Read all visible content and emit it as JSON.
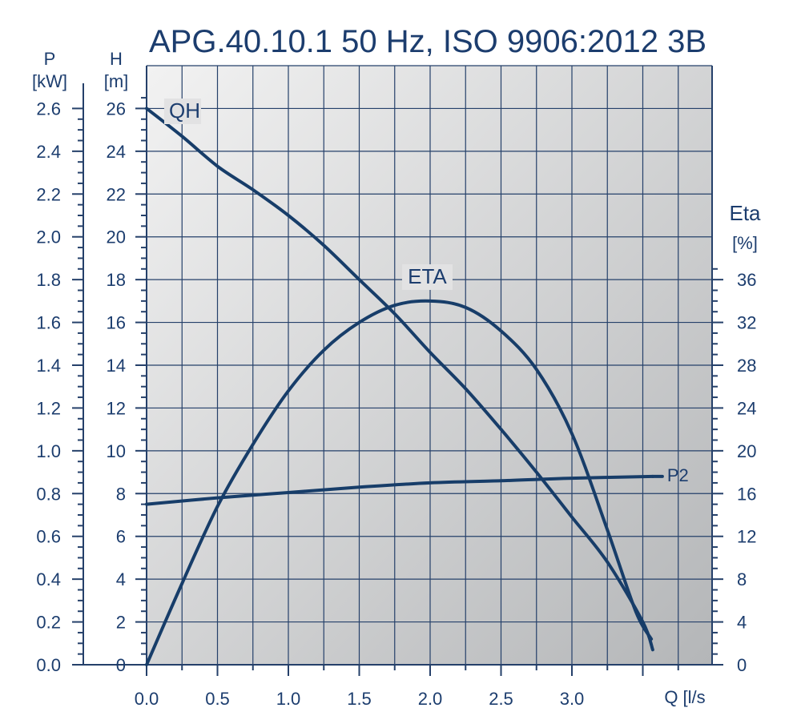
{
  "colors": {
    "curve": "#173d69",
    "text": "#1c3d6e",
    "grid": "#25406a",
    "plot_bg_light": "#f2f2f2",
    "plot_bg_dark": "#b4b6b8"
  },
  "chart_data": {
    "type": "line",
    "title": "APG.40.10.1 50 Hz, ISO 9906:2012 3B",
    "grid": true,
    "x": {
      "label": "Q [l/s",
      "range": [
        0,
        4.0
      ],
      "ticks": [
        0.0,
        0.5,
        1.0,
        1.5,
        2.0,
        2.5,
        3.0
      ],
      "tick_labels": [
        "0.0",
        "0.5",
        "1.0",
        "1.5",
        "2.0",
        "2.5",
        "3.0"
      ]
    },
    "y_head": {
      "label": "H",
      "unit": "[m]",
      "range": [
        0,
        28
      ],
      "ticks": [
        0,
        2,
        4,
        6,
        8,
        10,
        12,
        14,
        16,
        18,
        20,
        22,
        24,
        26
      ],
      "tick_labels": [
        "0",
        "2",
        "4",
        "6",
        "8",
        "10",
        "12",
        "14",
        "16",
        "18",
        "20",
        "22",
        "24",
        "26"
      ]
    },
    "y_power": {
      "label": "P",
      "unit": "[kW]",
      "range": [
        0,
        2.8
      ],
      "ticks": [
        0.0,
        0.2,
        0.4,
        0.6,
        0.8,
        1.0,
        1.2,
        1.4,
        1.6,
        1.8,
        2.0,
        2.2,
        2.4,
        2.6
      ],
      "tick_labels": [
        "0.0",
        "0.2",
        "0.4",
        "0.6",
        "0.8",
        "1.0",
        "1.2",
        "1.4",
        "1.6",
        "1.8",
        "2.0",
        "2.2",
        "2.4",
        "2.6"
      ]
    },
    "y_eta": {
      "label": "Eta",
      "unit": "[%]",
      "range": [
        0,
        56
      ],
      "ticks": [
        0,
        4,
        8,
        12,
        16,
        20,
        24,
        28,
        32,
        36
      ],
      "tick_labels": [
        "0",
        "4",
        "8",
        "12",
        "16",
        "20",
        "24",
        "28",
        "32",
        "36"
      ]
    },
    "series": [
      {
        "name": "QH",
        "axis": "y_head",
        "x": [
          0.0,
          0.25,
          0.5,
          0.75,
          1.0,
          1.25,
          1.5,
          1.75,
          2.0,
          2.25,
          2.5,
          2.75,
          3.0,
          3.25,
          3.5,
          3.57
        ],
        "y": [
          26.0,
          24.7,
          23.3,
          22.2,
          21.0,
          19.6,
          18.0,
          16.4,
          14.6,
          12.9,
          11.0,
          9.0,
          6.9,
          4.8,
          2.0,
          0.7
        ]
      },
      {
        "name": "ETA",
        "axis": "y_eta",
        "x": [
          0.0,
          0.25,
          0.5,
          0.75,
          1.0,
          1.25,
          1.5,
          1.75,
          2.0,
          2.25,
          2.5,
          2.75,
          3.0,
          3.25,
          3.45,
          3.56
        ],
        "y": [
          0.0,
          7.6,
          14.8,
          20.6,
          25.6,
          29.4,
          32.0,
          33.6,
          34.0,
          33.4,
          31.2,
          27.6,
          21.6,
          12.6,
          5.0,
          2.4
        ]
      },
      {
        "name": "P2",
        "axis": "y_power",
        "x": [
          0.0,
          0.5,
          1.0,
          1.5,
          2.0,
          2.5,
          3.0,
          3.57
        ],
        "y": [
          0.75,
          0.78,
          0.805,
          0.83,
          0.85,
          0.86,
          0.872,
          0.88
        ]
      }
    ]
  }
}
